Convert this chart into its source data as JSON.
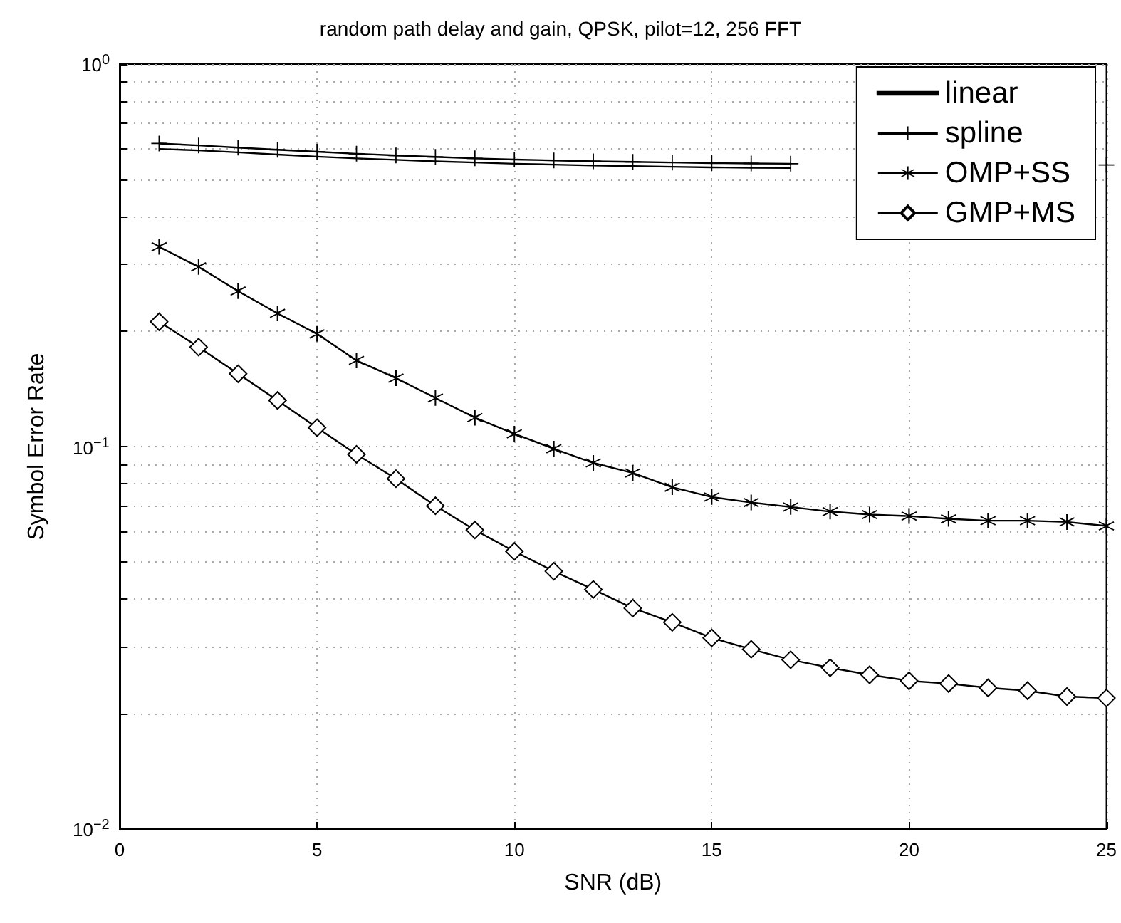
{
  "chart_data": {
    "type": "line",
    "title": "random path delay and gain, QPSK, pilot=12, 256 FFT",
    "xlabel": "SNR (dB)",
    "ylabel": "Symbol Error Rate",
    "x": [
      1,
      2,
      3,
      4,
      5,
      6,
      7,
      8,
      9,
      10,
      11,
      12,
      13,
      14,
      15,
      16,
      17,
      18,
      19,
      20,
      21,
      22,
      23,
      24,
      25
    ],
    "series": [
      {
        "name": "linear",
        "color": "#000000",
        "marker": "none",
        "values": [
          0.6,
          0.595,
          0.588,
          0.58,
          0.573,
          0.567,
          0.562,
          0.557,
          0.553,
          0.549,
          0.546,
          0.543,
          0.541,
          0.539,
          0.537,
          0.536,
          0.535,
          null,
          null,
          null,
          null,
          null,
          null,
          null,
          null
        ]
      },
      {
        "name": "spline",
        "color": "#000000",
        "marker": "cross",
        "values": [
          0.62,
          0.613,
          0.605,
          0.597,
          0.59,
          0.583,
          0.577,
          0.572,
          0.567,
          0.563,
          0.56,
          0.557,
          0.555,
          0.553,
          0.551,
          0.55,
          0.549,
          null,
          null,
          null,
          null,
          null,
          null,
          null,
          0.545
        ]
      },
      {
        "name": "OMP+SS",
        "color": "#000000",
        "marker": "star",
        "values": [
          0.333,
          0.295,
          0.255,
          0.223,
          0.197,
          0.168,
          0.151,
          0.134,
          0.119,
          0.108,
          0.0987,
          0.0906,
          0.0853,
          0.0783,
          0.0738,
          0.0714,
          0.0695,
          0.0676,
          0.0664,
          0.0658,
          0.0647,
          0.064,
          0.064,
          0.0635,
          0.062
        ]
      },
      {
        "name": "GMP+MS",
        "color": "#000000",
        "marker": "diamond",
        "values": [
          0.212,
          0.182,
          0.155,
          0.132,
          0.112,
          0.0954,
          0.0824,
          0.07,
          0.0605,
          0.0532,
          0.0472,
          0.0423,
          0.0378,
          0.0347,
          0.0316,
          0.0295,
          0.0277,
          0.0264,
          0.0253,
          0.0244,
          0.024,
          0.0234,
          0.023,
          0.0222,
          0.022
        ]
      }
    ],
    "log": "y",
    "grid": true,
    "legend": "top right",
    "line_style": "solid",
    "xlim": [
      0,
      25
    ],
    "xticks": [
      0,
      5,
      10,
      15,
      20,
      25
    ],
    "ylim": [
      0.01,
      1
    ],
    "yticks": [
      {
        "value": 0.01,
        "label": "10$^{−2}$"
      },
      {
        "value": 0.02,
        "label": null
      },
      {
        "value": 0.03,
        "label": null
      },
      {
        "value": 0.04,
        "label": null
      },
      {
        "value": 0.05,
        "label": null
      },
      {
        "value": 0.06,
        "label": null
      },
      {
        "value": 0.07,
        "label": null
      },
      {
        "value": 0.08,
        "label": null
      },
      {
        "value": 0.09,
        "label": null
      },
      {
        "value": 0.1,
        "label": "10$^{−1}$"
      },
      {
        "value": 0.2,
        "label": null
      },
      {
        "value": 0.3,
        "label": null
      },
      {
        "value": 0.4,
        "label": null
      },
      {
        "value": 0.5,
        "label": null
      },
      {
        "value": 0.6,
        "label": null
      },
      {
        "value": 0.7,
        "label": null
      },
      {
        "value": 0.8,
        "label": null
      },
      {
        "value": 0.9,
        "label": null
      },
      {
        "value": 1,
        "label": "10$^{0}$"
      }
    ]
  }
}
